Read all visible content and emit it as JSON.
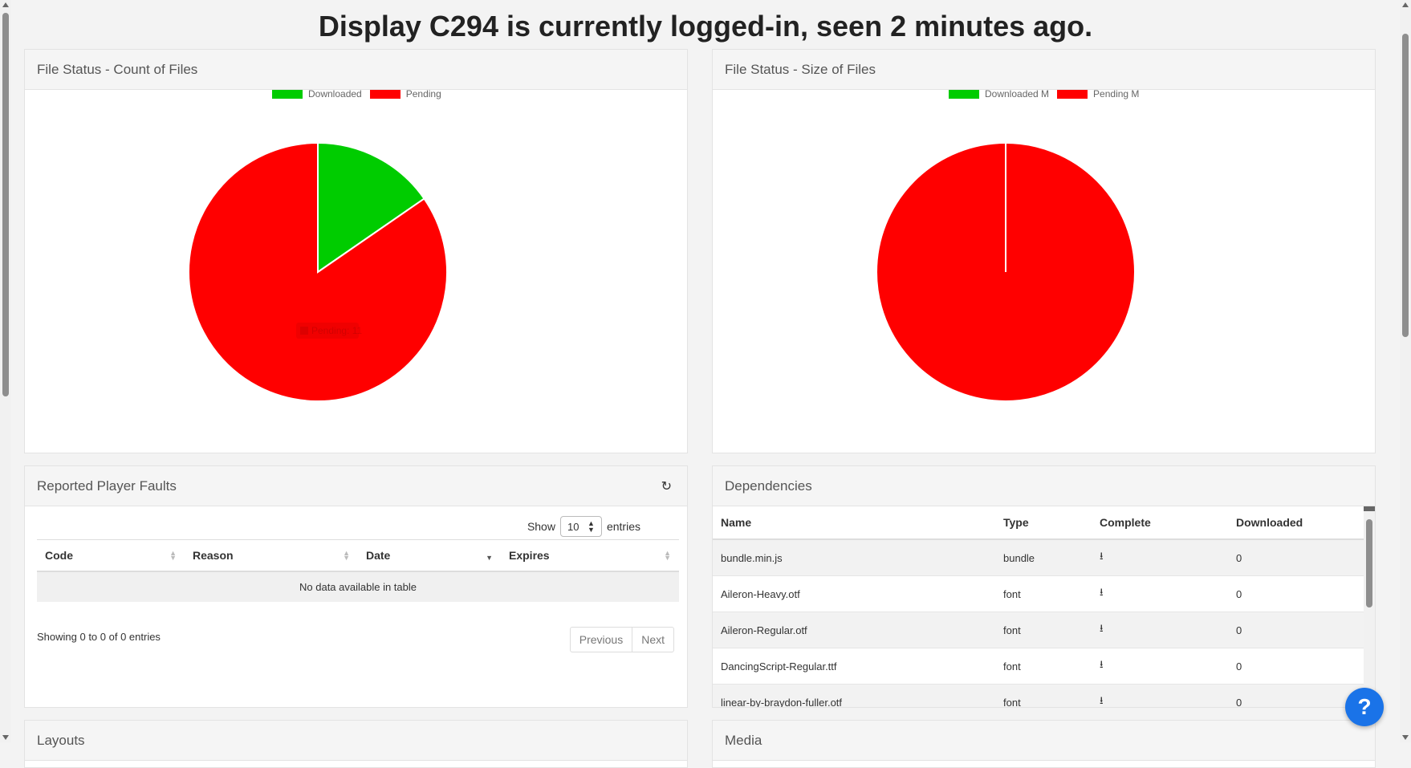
{
  "page": {
    "title": "Display C294 is currently logged-in, seen 2 minutes ago."
  },
  "count_panel": {
    "title": "File Status - Count of Files",
    "legend": [
      "Downloaded",
      "Pending"
    ],
    "colors": [
      "#00cc00",
      "#ff0000"
    ],
    "tooltip": "Pending: 11"
  },
  "size_panel": {
    "title": "File Status - Size of Files",
    "legend": [
      "Downloaded M",
      "Pending M"
    ],
    "colors": [
      "#00cc00",
      "#ff0000"
    ]
  },
  "chart_data": [
    {
      "type": "pie",
      "title": "File Status - Count of Files",
      "labels": [
        "Downloaded",
        "Pending"
      ],
      "values": [
        2,
        11
      ],
      "colors": [
        "#00cc00",
        "#ff0000"
      ],
      "legend": "top"
    },
    {
      "type": "pie",
      "title": "File Status - Size of Files",
      "labels": [
        "Downloaded M",
        "Pending M"
      ],
      "values": [
        0,
        100
      ],
      "colors": [
        "#00cc00",
        "#ff0000"
      ],
      "legend": "top"
    }
  ],
  "faults": {
    "title": "Reported Player Faults",
    "show_label": "Show",
    "entries_label": "entries",
    "page_size": "10",
    "columns": [
      "Code",
      "Reason",
      "Date",
      "Expires"
    ],
    "empty_text": "No data available in table",
    "info": "Showing 0 to 0 of 0 entries",
    "previous": "Previous",
    "next": "Next"
  },
  "dependencies": {
    "title": "Dependencies",
    "columns": [
      "Name",
      "Type",
      "Complete",
      "Downloaded"
    ],
    "rows": [
      {
        "name": "bundle.min.js",
        "type": "bundle",
        "downloaded": "0"
      },
      {
        "name": "Aileron-Heavy.otf",
        "type": "font",
        "downloaded": "0"
      },
      {
        "name": "Aileron-Regular.otf",
        "type": "font",
        "downloaded": "0"
      },
      {
        "name": "DancingScript-Regular.ttf",
        "type": "font",
        "downloaded": "0"
      },
      {
        "name": "linear-by-braydon-fuller.otf",
        "type": "font",
        "downloaded": "0"
      }
    ]
  },
  "layouts": {
    "title": "Layouts"
  },
  "media": {
    "title": "Media"
  },
  "help": {
    "label": "?"
  }
}
